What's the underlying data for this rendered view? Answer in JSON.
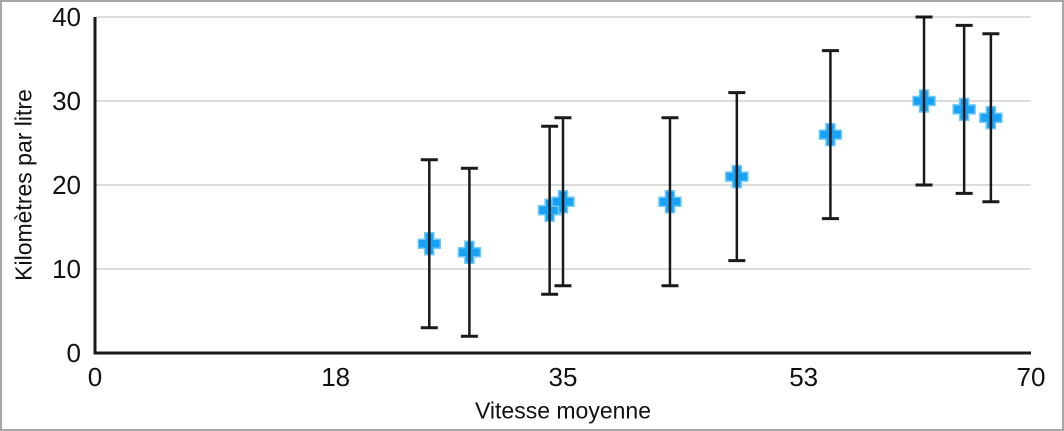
{
  "chart_data": {
    "type": "scatter",
    "title": "",
    "xlabel": "Vitesse moyenne",
    "ylabel": "Kilomètres par litre",
    "xlim": [
      0,
      70
    ],
    "ylim": [
      0,
      40
    ],
    "xticks": [
      "0",
      "18",
      "35",
      "53",
      "70"
    ],
    "xtick_values": [
      0,
      18,
      35,
      53,
      70
    ],
    "yticks": [
      "0",
      "10",
      "20",
      "30",
      "40"
    ],
    "ytick_values": [
      0,
      10,
      20,
      30,
      40
    ],
    "grid": "horizontal-only",
    "legend": "none",
    "marker": "plus",
    "marker_color": "#18a2f5",
    "marker_edge_color": "#6ec9fb",
    "axis_line_color": "#1a1a1a",
    "gridline_color": "#dcdcdc",
    "error_bars": {
      "axis": "y",
      "plus": 10,
      "minus": 10,
      "color": "#1a1a1a"
    },
    "points": [
      {
        "x": 25,
        "y": 13,
        "y_low": 3,
        "y_high": 23
      },
      {
        "x": 28,
        "y": 12,
        "y_low": 2,
        "y_high": 22
      },
      {
        "x": 34,
        "y": 17,
        "y_low": 7,
        "y_high": 27
      },
      {
        "x": 35,
        "y": 18,
        "y_low": 8,
        "y_high": 28
      },
      {
        "x": 43,
        "y": 18,
        "y_low": 8,
        "y_high": 28
      },
      {
        "x": 48,
        "y": 21,
        "y_low": 11,
        "y_high": 31
      },
      {
        "x": 55,
        "y": 26,
        "y_low": 16,
        "y_high": 36
      },
      {
        "x": 62,
        "y": 30,
        "y_low": 20,
        "y_high": 40
      },
      {
        "x": 65,
        "y": 29,
        "y_low": 19,
        "y_high": 39
      },
      {
        "x": 67,
        "y": 28,
        "y_low": 18,
        "y_high": 38
      }
    ]
  },
  "frame": {
    "background": "#ffffff",
    "border_color": "#a6a6a6"
  }
}
